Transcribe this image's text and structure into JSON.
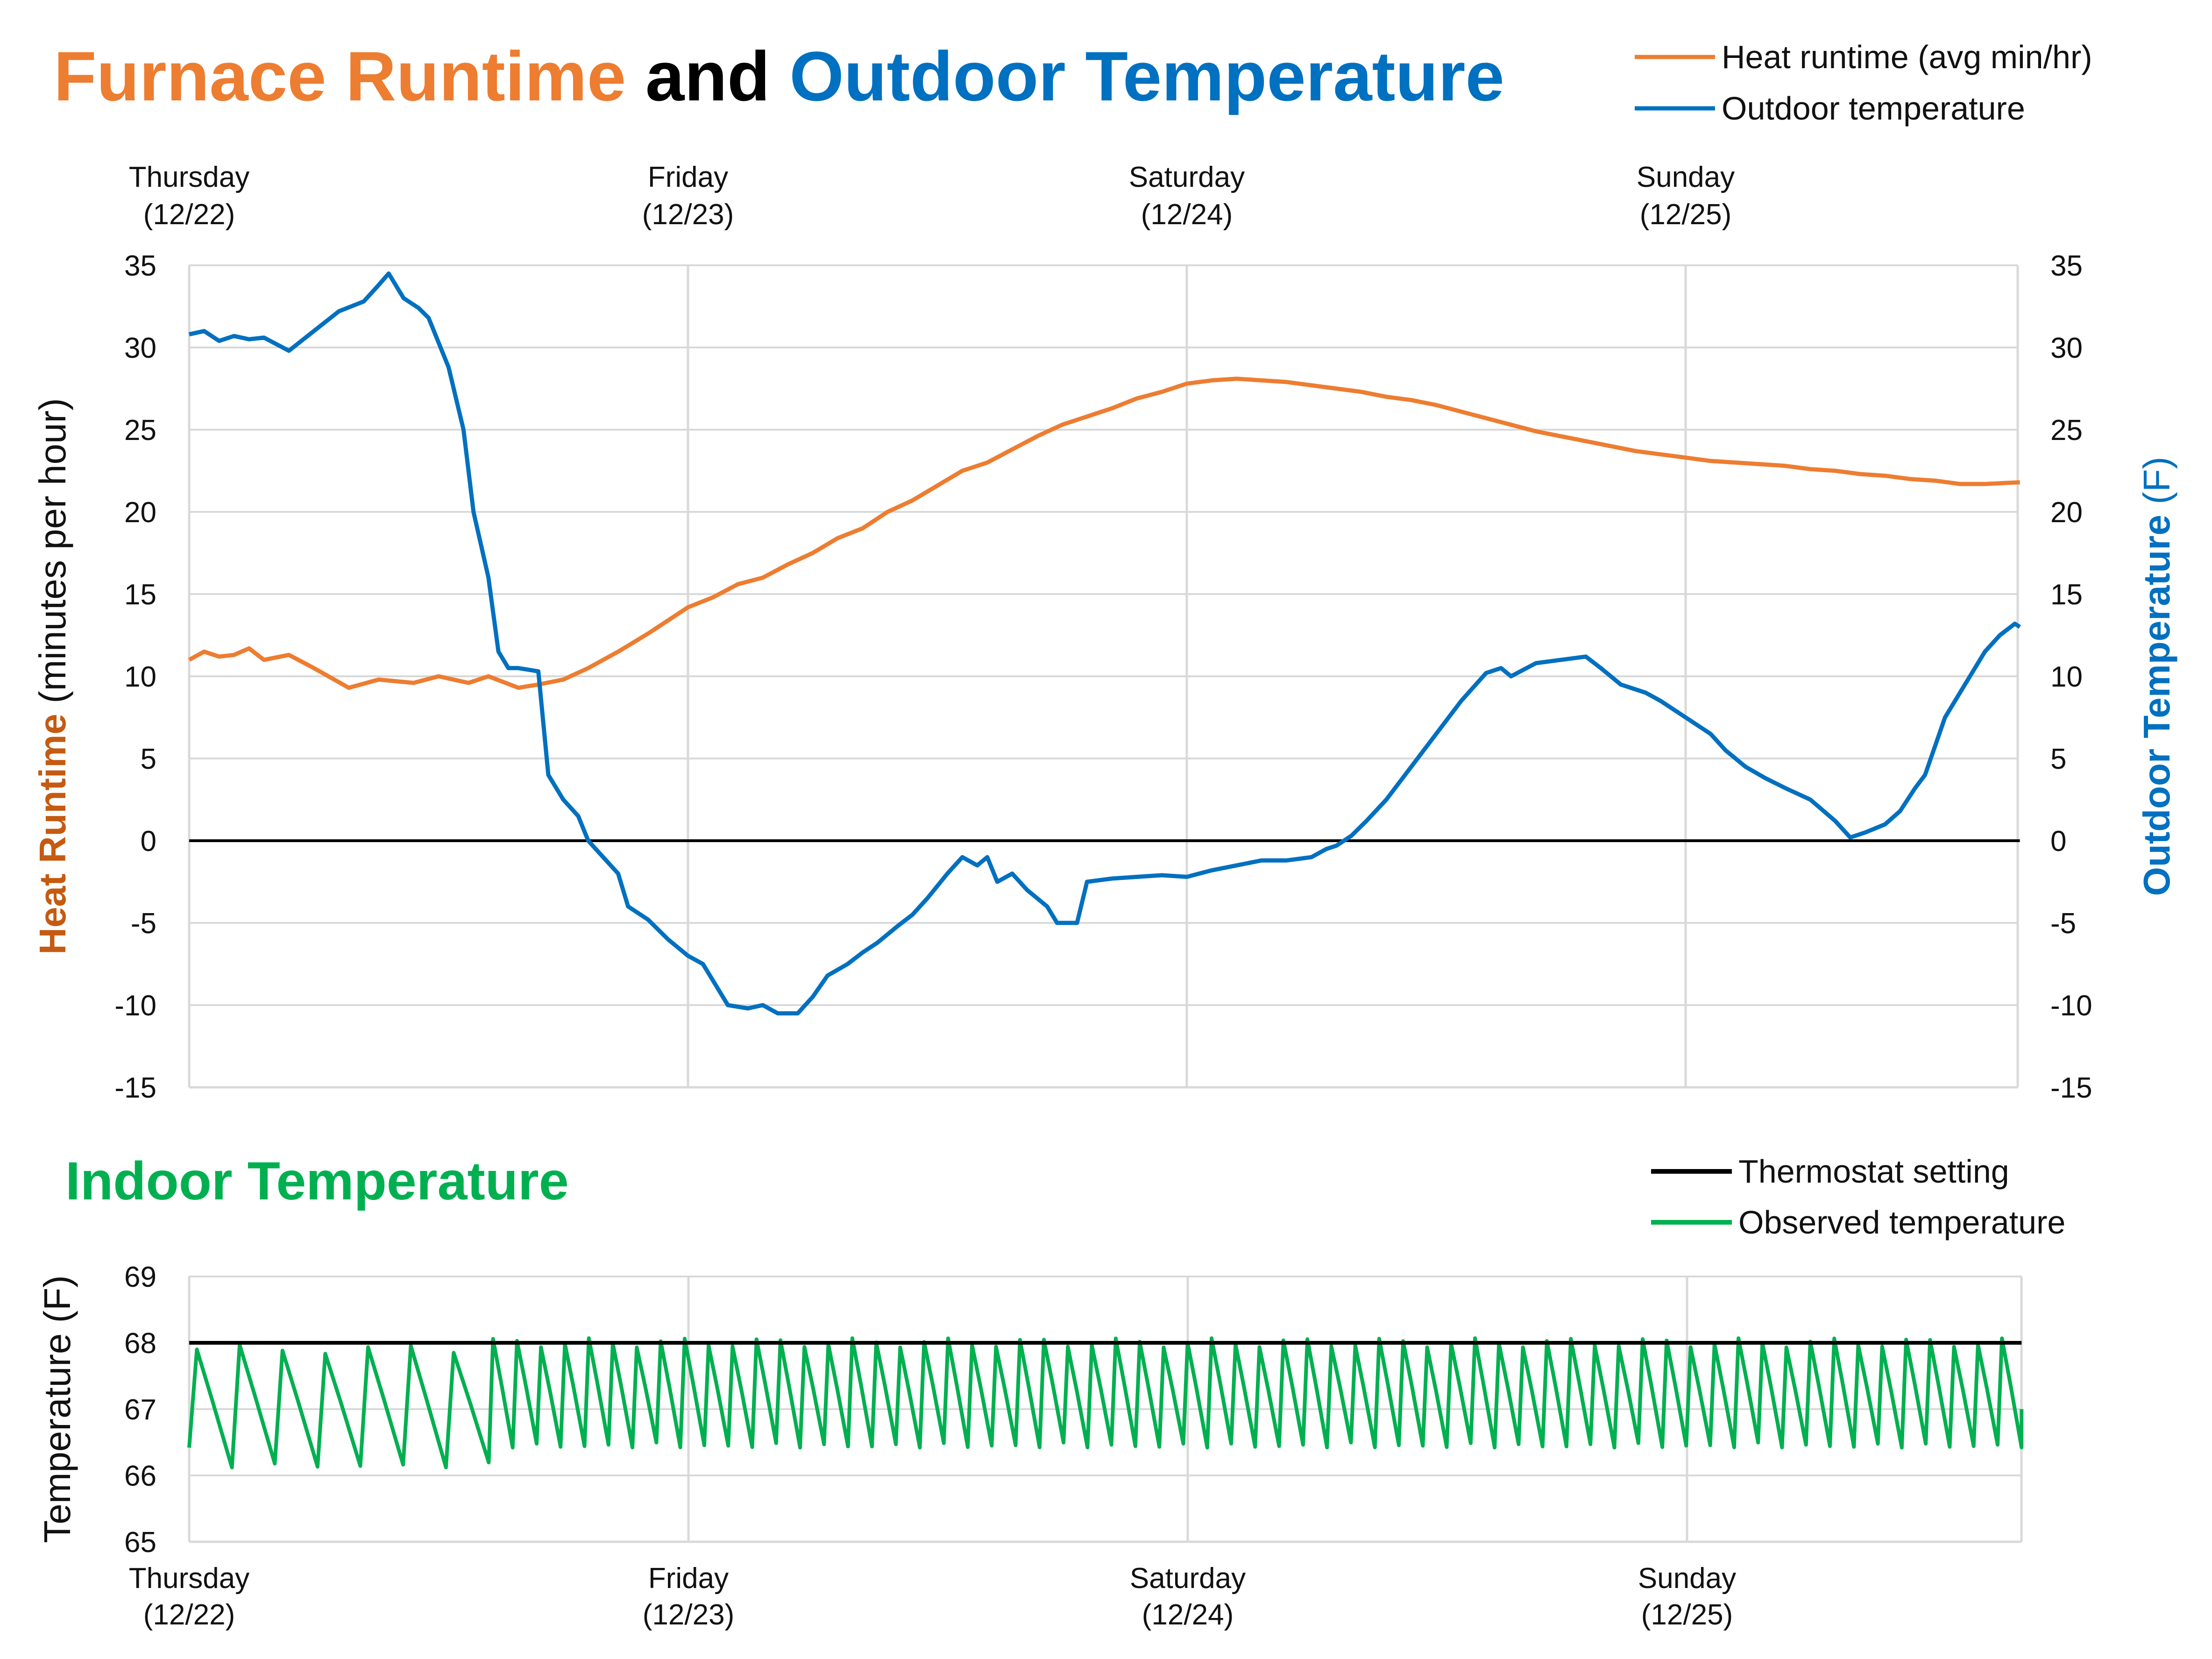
{
  "colors": {
    "runtime": "#ED7D31",
    "runtime_axis_label": "#C55A11",
    "outdoor": "#0070C0",
    "indoor": "#00B050",
    "thermostat": "#000000",
    "grid": "#D9D9D9"
  },
  "chart_data": [
    {
      "type": "line",
      "title": {
        "part1": "Furnace Runtime",
        "part2": " and ",
        "part3": "Outdoor Temperature"
      },
      "x_range_days": [
        0,
        3.67
      ],
      "day_labels": [
        {
          "day": "Thursday",
          "date": "(12/22)",
          "at": 0
        },
        {
          "day": "Friday",
          "date": "(12/23)",
          "at": 1
        },
        {
          "day": "Saturday",
          "date": "(12/24)",
          "at": 2
        },
        {
          "day": "Sunday",
          "date": "(12/25)",
          "at": 3
        }
      ],
      "ylabel_left": {
        "bold": "Heat Runtime",
        "rest": " (minutes per hour)"
      },
      "ylabel_right": {
        "bold": "Outdoor Temperature",
        "rest": " (F)"
      },
      "ylim": [
        -15,
        35
      ],
      "y_ticks": [
        "35",
        "30",
        "25",
        "20",
        "15",
        "10",
        "5",
        "0",
        "-5",
        "-10",
        "-15"
      ],
      "series": [
        {
          "name": "Heat runtime (avg min/hr)",
          "axis": "left",
          "points": [
            [
              0,
              11
            ],
            [
              0.03,
              11.5
            ],
            [
              0.06,
              11.2
            ],
            [
              0.09,
              11.3
            ],
            [
              0.12,
              11.7
            ],
            [
              0.15,
              11
            ],
            [
              0.2,
              11.3
            ],
            [
              0.25,
              10.5
            ],
            [
              0.32,
              9.3
            ],
            [
              0.38,
              9.8
            ],
            [
              0.45,
              9.6
            ],
            [
              0.5,
              10
            ],
            [
              0.56,
              9.6
            ],
            [
              0.6,
              10
            ],
            [
              0.66,
              9.3
            ],
            [
              0.7,
              9.5
            ],
            [
              0.75,
              9.8
            ],
            [
              0.8,
              10.5
            ],
            [
              0.86,
              11.5
            ],
            [
              0.92,
              12.6
            ],
            [
              1,
              14.2
            ],
            [
              1.05,
              14.8
            ],
            [
              1.1,
              15.6
            ],
            [
              1.15,
              16
            ],
            [
              1.2,
              16.8
            ],
            [
              1.25,
              17.5
            ],
            [
              1.3,
              18.4
            ],
            [
              1.35,
              19
            ],
            [
              1.4,
              20
            ],
            [
              1.45,
              20.7
            ],
            [
              1.5,
              21.6
            ],
            [
              1.55,
              22.5
            ],
            [
              1.6,
              23
            ],
            [
              1.65,
              23.8
            ],
            [
              1.7,
              24.6
            ],
            [
              1.75,
              25.3
            ],
            [
              1.8,
              25.8
            ],
            [
              1.85,
              26.3
            ],
            [
              1.9,
              26.9
            ],
            [
              1.95,
              27.3
            ],
            [
              2,
              27.8
            ],
            [
              2.05,
              28
            ],
            [
              2.1,
              28.1
            ],
            [
              2.15,
              28
            ],
            [
              2.2,
              27.9
            ],
            [
              2.25,
              27.7
            ],
            [
              2.3,
              27.5
            ],
            [
              2.35,
              27.3
            ],
            [
              2.4,
              27
            ],
            [
              2.45,
              26.8
            ],
            [
              2.5,
              26.5
            ],
            [
              2.55,
              26.1
            ],
            [
              2.6,
              25.7
            ],
            [
              2.65,
              25.3
            ],
            [
              2.7,
              24.9
            ],
            [
              2.75,
              24.6
            ],
            [
              2.8,
              24.3
            ],
            [
              2.85,
              24
            ],
            [
              2.9,
              23.7
            ],
            [
              2.95,
              23.5
            ],
            [
              3,
              23.3
            ],
            [
              3.05,
              23.1
            ],
            [
              3.1,
              23
            ],
            [
              3.15,
              22.9
            ],
            [
              3.2,
              22.8
            ],
            [
              3.25,
              22.6
            ],
            [
              3.3,
              22.5
            ],
            [
              3.35,
              22.3
            ],
            [
              3.4,
              22.2
            ],
            [
              3.45,
              22
            ],
            [
              3.5,
              21.9
            ],
            [
              3.55,
              21.7
            ],
            [
              3.6,
              21.7
            ],
            [
              3.67,
              21.8
            ]
          ]
        },
        {
          "name": "Outdoor temperature",
          "axis": "right",
          "points": [
            [
              0,
              30.8
            ],
            [
              0.03,
              31
            ],
            [
              0.06,
              30.4
            ],
            [
              0.09,
              30.7
            ],
            [
              0.12,
              30.5
            ],
            [
              0.15,
              30.6
            ],
            [
              0.2,
              29.8
            ],
            [
              0.25,
              31
            ],
            [
              0.3,
              32.2
            ],
            [
              0.35,
              32.8
            ],
            [
              0.38,
              33.8
            ],
            [
              0.4,
              34.5
            ],
            [
              0.43,
              33
            ],
            [
              0.46,
              32.4
            ],
            [
              0.48,
              31.8
            ],
            [
              0.52,
              28.8
            ],
            [
              0.55,
              25
            ],
            [
              0.57,
              20
            ],
            [
              0.6,
              16
            ],
            [
              0.62,
              11.5
            ],
            [
              0.64,
              10.5
            ],
            [
              0.66,
              10.5
            ],
            [
              0.7,
              10.3
            ],
            [
              0.72,
              4
            ],
            [
              0.75,
              2.5
            ],
            [
              0.78,
              1.5
            ],
            [
              0.8,
              0
            ],
            [
              0.83,
              -1
            ],
            [
              0.86,
              -2
            ],
            [
              0.88,
              -4
            ],
            [
              0.92,
              -4.8
            ],
            [
              0.96,
              -6
            ],
            [
              1,
              -7
            ],
            [
              1.03,
              -7.5
            ],
            [
              1.05,
              -8.5
            ],
            [
              1.08,
              -10
            ],
            [
              1.12,
              -10.2
            ],
            [
              1.15,
              -10
            ],
            [
              1.18,
              -10.5
            ],
            [
              1.22,
              -10.5
            ],
            [
              1.25,
              -9.5
            ],
            [
              1.28,
              -8.2
            ],
            [
              1.32,
              -7.5
            ],
            [
              1.35,
              -6.8
            ],
            [
              1.38,
              -6.2
            ],
            [
              1.42,
              -5.2
            ],
            [
              1.45,
              -4.5
            ],
            [
              1.48,
              -3.5
            ],
            [
              1.52,
              -2
            ],
            [
              1.55,
              -1
            ],
            [
              1.58,
              -1.5
            ],
            [
              1.6,
              -1
            ],
            [
              1.62,
              -2.5
            ],
            [
              1.65,
              -2
            ],
            [
              1.68,
              -3
            ],
            [
              1.72,
              -4
            ],
            [
              1.74,
              -5
            ],
            [
              1.78,
              -5
            ],
            [
              1.8,
              -2.5
            ],
            [
              1.85,
              -2.3
            ],
            [
              1.9,
              -2.2
            ],
            [
              1.95,
              -2.1
            ],
            [
              2,
              -2.2
            ],
            [
              2.05,
              -1.8
            ],
            [
              2.1,
              -1.5
            ],
            [
              2.15,
              -1.2
            ],
            [
              2.2,
              -1.2
            ],
            [
              2.25,
              -1
            ],
            [
              2.28,
              -0.5
            ],
            [
              2.3,
              -0.3
            ],
            [
              2.33,
              0.3
            ],
            [
              2.36,
              1.2
            ],
            [
              2.4,
              2.5
            ],
            [
              2.45,
              4.5
            ],
            [
              2.5,
              6.5
            ],
            [
              2.55,
              8.5
            ],
            [
              2.6,
              10.2
            ],
            [
              2.63,
              10.5
            ],
            [
              2.65,
              10
            ],
            [
              2.7,
              10.8
            ],
            [
              2.75,
              11
            ],
            [
              2.8,
              11.2
            ],
            [
              2.83,
              10.5
            ],
            [
              2.87,
              9.5
            ],
            [
              2.92,
              9
            ],
            [
              2.95,
              8.5
            ],
            [
              3,
              7.5
            ],
            [
              3.05,
              6.5
            ],
            [
              3.08,
              5.5
            ],
            [
              3.12,
              4.5
            ],
            [
              3.16,
              3.8
            ],
            [
              3.2,
              3.2
            ],
            [
              3.25,
              2.5
            ],
            [
              3.3,
              1.2
            ],
            [
              3.33,
              0.2
            ],
            [
              3.36,
              0.5
            ],
            [
              3.4,
              1
            ],
            [
              3.43,
              1.8
            ],
            [
              3.46,
              3.2
            ],
            [
              3.48,
              4
            ],
            [
              3.52,
              7.5
            ],
            [
              3.55,
              9
            ],
            [
              3.6,
              11.5
            ],
            [
              3.63,
              12.5
            ],
            [
              3.66,
              13.2
            ],
            [
              3.67,
              13
            ]
          ]
        },
        {
          "name": "Zero line",
          "axis": "left",
          "points": [
            [
              0,
              0
            ],
            [
              3.67,
              0
            ]
          ]
        }
      ],
      "legend": [
        "Heat runtime (avg min/hr)",
        "Outdoor temperature"
      ]
    },
    {
      "type": "line",
      "title": "Indoor Temperature",
      "x_range_days": [
        0,
        3.67
      ],
      "day_labels": [
        {
          "day": "Thursday",
          "date": "(12/22)",
          "at": 0
        },
        {
          "day": "Friday",
          "date": "(12/23)",
          "at": 1
        },
        {
          "day": "Saturday",
          "date": "(12/24)",
          "at": 2
        },
        {
          "day": "Sunday",
          "date": "(12/25)",
          "at": 3
        }
      ],
      "ylabel": "Temperature (F)",
      "ylim": [
        65,
        69
      ],
      "y_ticks": [
        "69",
        "68",
        "67",
        "66",
        "65"
      ],
      "series": [
        {
          "name": "Thermostat setting",
          "value": 68
        },
        {
          "name": "Observed temperature",
          "segments": [
            {
              "from": 0,
              "to": 0.6,
              "cycles": 7,
              "min": 66.2,
              "max": 67.9
            },
            {
              "from": 0.6,
              "to": 3.67,
              "cycles": 64,
              "min": 66.5,
              "max": 68
            }
          ]
        }
      ],
      "legend": [
        "Thermostat setting",
        "Observed temperature"
      ]
    }
  ]
}
